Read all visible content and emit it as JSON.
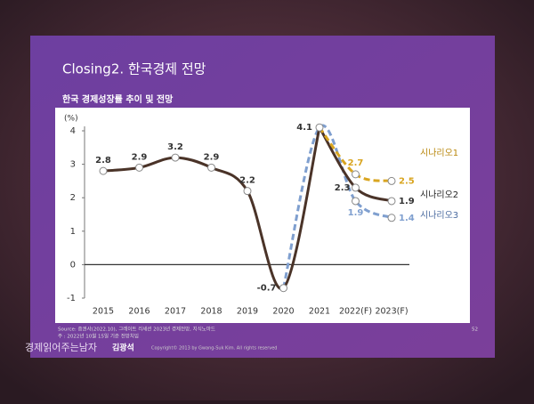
{
  "slide": {
    "title": "Closing2. 한국경제 전망",
    "source": "Source: 증권사(2022.10), 그레이트 리세션 2023년 경제전망, 지식노마드",
    "note": "주 : 2022년 10월 15일 기준 전망치임",
    "brand": "경제읽어주는남자",
    "author": "김광석",
    "copyright": "Copyright© 2013 by Gwang-Suk Kim. All rights reserved",
    "page": "52"
  },
  "chart_data": {
    "type": "line",
    "title": "한국 경제성장률 추이 및 전망",
    "y_label": "(%)",
    "categories": [
      "2015",
      "2016",
      "2017",
      "2018",
      "2019",
      "2020",
      "2021",
      "2022(F)",
      "2023(F)"
    ],
    "ylim": [
      -1,
      4
    ],
    "yticks": [
      -1,
      0,
      1,
      2,
      3,
      4
    ],
    "main": {
      "color": "#4a3328",
      "values": [
        2.8,
        2.9,
        3.2,
        2.9,
        2.2,
        -0.7,
        4.1,
        null,
        null
      ]
    },
    "series": [
      {
        "name": "시나리오1",
        "color": "#d9a520",
        "dashed": true,
        "values": [
          null,
          null,
          null,
          null,
          null,
          null,
          4.1,
          2.7,
          2.5
        ]
      },
      {
        "name": "시나리오2",
        "color": "#4a3328",
        "dashed": false,
        "values": [
          null,
          null,
          null,
          null,
          null,
          null,
          4.1,
          2.3,
          1.9
        ]
      },
      {
        "name": "시나리오3",
        "color": "#7f9fcf",
        "dashed": true,
        "values": [
          null,
          null,
          null,
          null,
          null,
          -0.7,
          4.1,
          1.9,
          1.4
        ]
      }
    ]
  }
}
